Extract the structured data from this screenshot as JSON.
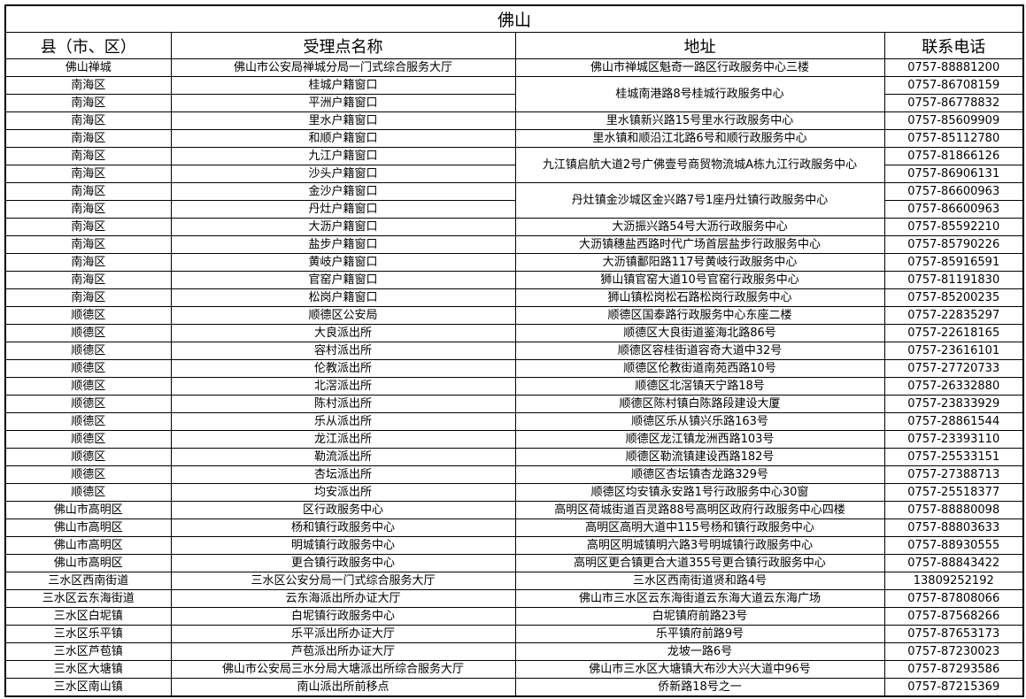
{
  "title": "佛山",
  "headers": [
    "县（市、区）",
    "受理点名称",
    "地址",
    "联系电话"
  ],
  "rows": [
    {
      "county": "佛山禅城",
      "name": "佛山市公安局禅城分局一门式综合服务大厅",
      "address": "佛山市禅城区魁奇一路区行政服务中心三楼",
      "phone": "0757-88881200"
    },
    {
      "county": "南海区",
      "name": "桂城户籍窗口",
      "address": "桂城南港路8号桂城行政服务中心",
      "address_rowspan": 2,
      "phone": "0757-86708159"
    },
    {
      "county": "南海区",
      "name": "平洲户籍窗口",
      "address": null,
      "phone": "0757-86778832"
    },
    {
      "county": "南海区",
      "name": "里水户籍窗口",
      "address": "里水镇新兴路15号里水行政服务中心",
      "phone": "0757-85609909"
    },
    {
      "county": "南海区",
      "name": "和顺户籍窗口",
      "address": "里水镇和顺沿江北路6号和顺行政服务中心",
      "phone": "0757-85112780"
    },
    {
      "county": "南海区",
      "name": "九江户籍窗口",
      "address": "九江镇启航大道2号广佛壹号商贸物流城A栋九江行政服务中心",
      "address_rowspan": 2,
      "phone": "0757-81866126"
    },
    {
      "county": "南海区",
      "name": "沙头户籍窗口",
      "address": null,
      "phone": "0757-86906131"
    },
    {
      "county": "南海区",
      "name": "金沙户籍窗口",
      "address": "丹灶镇金沙城区金兴路7号1座丹灶镇行政服务中心",
      "address_rowspan": 2,
      "phone": "0757-86600963"
    },
    {
      "county": "南海区",
      "name": "丹灶户籍窗口",
      "address": null,
      "phone": "0757-86600963"
    },
    {
      "county": "南海区",
      "name": "大沥户籍窗口",
      "address": "大沥振兴路54号大沥行政服务中心",
      "phone": "0757-85592210"
    },
    {
      "county": "南海区",
      "name": "盐步户籍窗口",
      "address": "大沥镇穗盐西路时代广场首层盐步行政服务中心",
      "phone": "0757-85790226"
    },
    {
      "county": "南海区",
      "name": "黄岐户籍窗口",
      "address": "大沥镇鄱阳路117号黄岐行政服务中心",
      "phone": "0757-85916591"
    },
    {
      "county": "南海区",
      "name": "官窑户籍窗口",
      "address": "狮山镇官窑大道10号官窑行政服务中心",
      "phone": "0757-81191830"
    },
    {
      "county": "南海区",
      "name": "松岗户籍窗口",
      "address": "狮山镇松岗松石路松岗行政服务中心",
      "phone": "0757-85200235"
    },
    {
      "county": "顺德区",
      "name": "顺德区公安局",
      "address": "顺德区国泰路行政服务中心东座二楼",
      "phone": "0757-22835297"
    },
    {
      "county": "顺德区",
      "name": "大良派出所",
      "address": "顺德区大良街道鉴海北路86号",
      "phone": "0757-22618165"
    },
    {
      "county": "顺德区",
      "name": "容村派出所",
      "address": "顺德区容桂街道容奇大道中32号",
      "phone": "0757-23616101"
    },
    {
      "county": "顺德区",
      "name": "伦教派出所",
      "address": "顺德区伦教街道南苑西路10号",
      "phone": "0757-27720733"
    },
    {
      "county": "顺德区",
      "name": "北滘派出所",
      "address": "顺德区北滘镇天宁路18号",
      "phone": "0757-26332880"
    },
    {
      "county": "顺德区",
      "name": "陈村派出所",
      "address": "顺德区陈村镇白陈路段建设大厦",
      "phone": "0757-23833929"
    },
    {
      "county": "顺德区",
      "name": "乐从派出所",
      "address": "顺德区乐从镇兴乐路163号",
      "phone": "0757-28861544"
    },
    {
      "county": "顺德区",
      "name": "龙江派出所",
      "address": "顺德区龙江镇龙洲西路103号",
      "phone": "0757-23393110"
    },
    {
      "county": "顺德区",
      "name": "勒流派出所",
      "address": "顺德区勒流镇建设西路182号",
      "phone": "0757-25533151"
    },
    {
      "county": "顺德区",
      "name": "杏坛派出所",
      "address": "顺德区杏坛镇杏龙路329号",
      "phone": "0757-27388713"
    },
    {
      "county": "顺德区",
      "name": "均安派出所",
      "address": "顺德区均安镇永安路1号行政服务中心30窗",
      "phone": "0757-25518377"
    },
    {
      "county": "佛山市高明区",
      "name": "区行政服务中心",
      "address": "高明区荷城街道百灵路88号高明区政府行政服务中心四楼",
      "phone": "0757-88880098"
    },
    {
      "county": "佛山市高明区",
      "name": "杨和镇行政服务中心",
      "address": "高明区高明大道中115号杨和镇行政服务中心",
      "phone": "0757-88803633"
    },
    {
      "county": "佛山市高明区",
      "name": "明城镇行政服务中心",
      "address": "高明区明城镇明六路3号明城镇行政服务中心",
      "phone": "0757-88930555"
    },
    {
      "county": "佛山市高明区",
      "name": "更合镇行政服务中心",
      "address": "高明区更合镇更合大道355号更合镇行政服务中心",
      "phone": "0757-88843422"
    },
    {
      "county": "三水区西南街道",
      "name": "三水区公安分局一门式综合服务大厅",
      "address": "三水区西南街道贤和路4号",
      "phone": "13809252192"
    },
    {
      "county": "三水区云东海街道",
      "name": "云东海派出所办证大厅",
      "address": "佛山市三水区云东海街道云东海大道云东海广场",
      "phone": "0757-87808066"
    },
    {
      "county": "三水区白坭镇",
      "name": "白坭镇行政服务中心",
      "address": "白坭镇府前路23号",
      "phone": "0757-87568266"
    },
    {
      "county": "三水区乐平镇",
      "name": "乐平派出所办证大厅",
      "address": "乐平镇府前路9号",
      "phone": "0757-87653173"
    },
    {
      "county": "三水区芦苞镇",
      "name": "芦苞派出所办证大厅",
      "address": "龙坡一路6号",
      "phone": "0757-87230023"
    },
    {
      "county": "三水区大塘镇",
      "name": "佛山市公安局三水分局大塘派出所综合服务大厅",
      "address": "佛山市三水区大塘镇大布沙大兴大道中96号",
      "phone": "0757-87293586"
    },
    {
      "county": "三水区南山镇",
      "name": "南山派出所前移点",
      "address": "侨新路18号之一",
      "phone": "0757-87215369"
    }
  ]
}
